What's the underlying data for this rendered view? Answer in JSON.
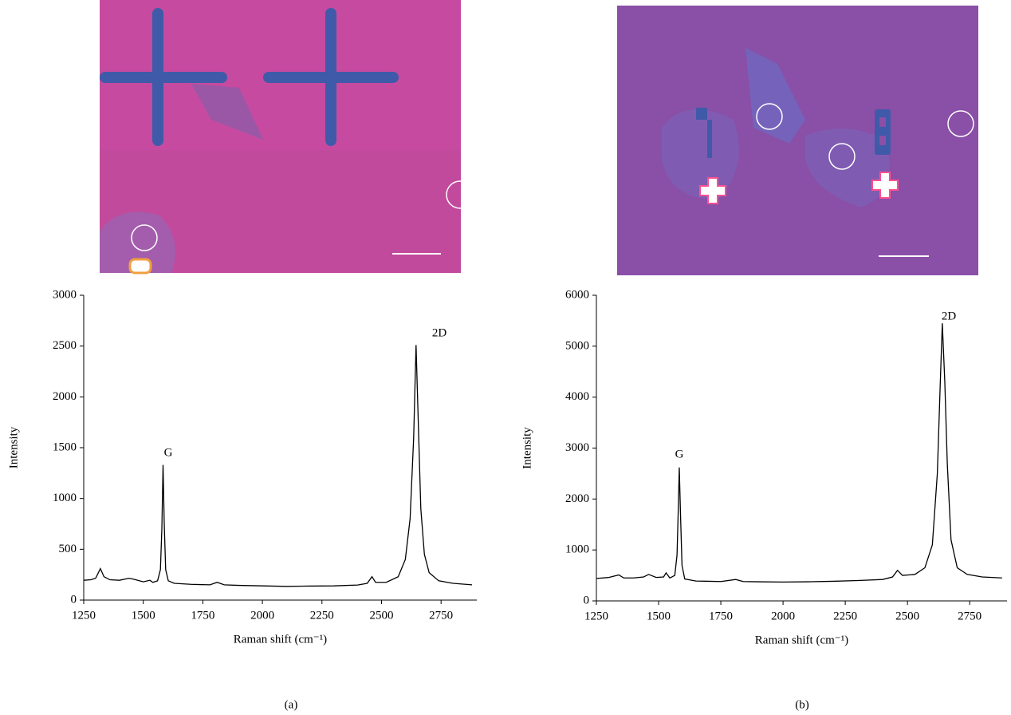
{
  "chart_data": [
    {
      "type": "line",
      "panel": "(a)",
      "xlabel": "Raman shift (cm⁻¹)",
      "ylabel": "Intensity",
      "color": "#000000",
      "annotations": [
        "G",
        "2D"
      ],
      "xlim": [
        1250,
        2900
      ],
      "ylim": [
        0,
        3000
      ],
      "xticks": [
        1250,
        1500,
        1750,
        2000,
        2250,
        2500,
        2750
      ],
      "yticks": [
        0,
        500,
        1000,
        1500,
        2000,
        2500,
        3000
      ],
      "x": [
        1250,
        1280,
        1300,
        1320,
        1335,
        1360,
        1400,
        1440,
        1460,
        1500,
        1528,
        1540,
        1560,
        1572,
        1578,
        1583,
        1588,
        1594,
        1605,
        1630,
        1700,
        1780,
        1810,
        1840,
        1900,
        2000,
        2100,
        2200,
        2300,
        2400,
        2440,
        2460,
        2475,
        2520,
        2570,
        2600,
        2620,
        2635,
        2645,
        2655,
        2665,
        2680,
        2700,
        2740,
        2800,
        2880
      ],
      "values": [
        195,
        200,
        215,
        310,
        230,
        200,
        195,
        215,
        205,
        180,
        195,
        175,
        190,
        300,
        700,
        1330,
        750,
        300,
        190,
        165,
        155,
        150,
        175,
        150,
        145,
        140,
        135,
        138,
        140,
        148,
        165,
        230,
        175,
        175,
        230,
        400,
        800,
        1600,
        2510,
        1700,
        900,
        450,
        270,
        190,
        165,
        150
      ]
    },
    {
      "type": "line",
      "panel": "(b)",
      "xlabel": "Raman shift (cm⁻¹)",
      "ylabel": "Intensity",
      "color": "#000000",
      "annotations": [
        "G",
        "2D"
      ],
      "xlim": [
        1250,
        2900
      ],
      "ylim": [
        0,
        6000
      ],
      "xticks": [
        1250,
        1500,
        1750,
        2000,
        2250,
        2500,
        2750
      ],
      "yticks": [
        0,
        1000,
        2000,
        3000,
        4000,
        5000,
        6000
      ],
      "x": [
        1250,
        1300,
        1340,
        1360,
        1400,
        1440,
        1460,
        1490,
        1520,
        1530,
        1545,
        1565,
        1574,
        1579,
        1583,
        1588,
        1594,
        1605,
        1650,
        1750,
        1810,
        1840,
        1900,
        2000,
        2100,
        2200,
        2300,
        2400,
        2440,
        2460,
        2480,
        2530,
        2570,
        2600,
        2620,
        2632,
        2640,
        2650,
        2660,
        2675,
        2700,
        2740,
        2800,
        2880
      ],
      "values": [
        440,
        460,
        510,
        450,
        450,
        470,
        520,
        460,
        470,
        550,
        450,
        500,
        900,
        1800,
        2620,
        1700,
        700,
        430,
        390,
        380,
        420,
        380,
        375,
        370,
        375,
        385,
        400,
        420,
        470,
        600,
        500,
        520,
        650,
        1100,
        2500,
        4300,
        5450,
        4300,
        2700,
        1200,
        650,
        520,
        470,
        450
      ]
    }
  ]
}
